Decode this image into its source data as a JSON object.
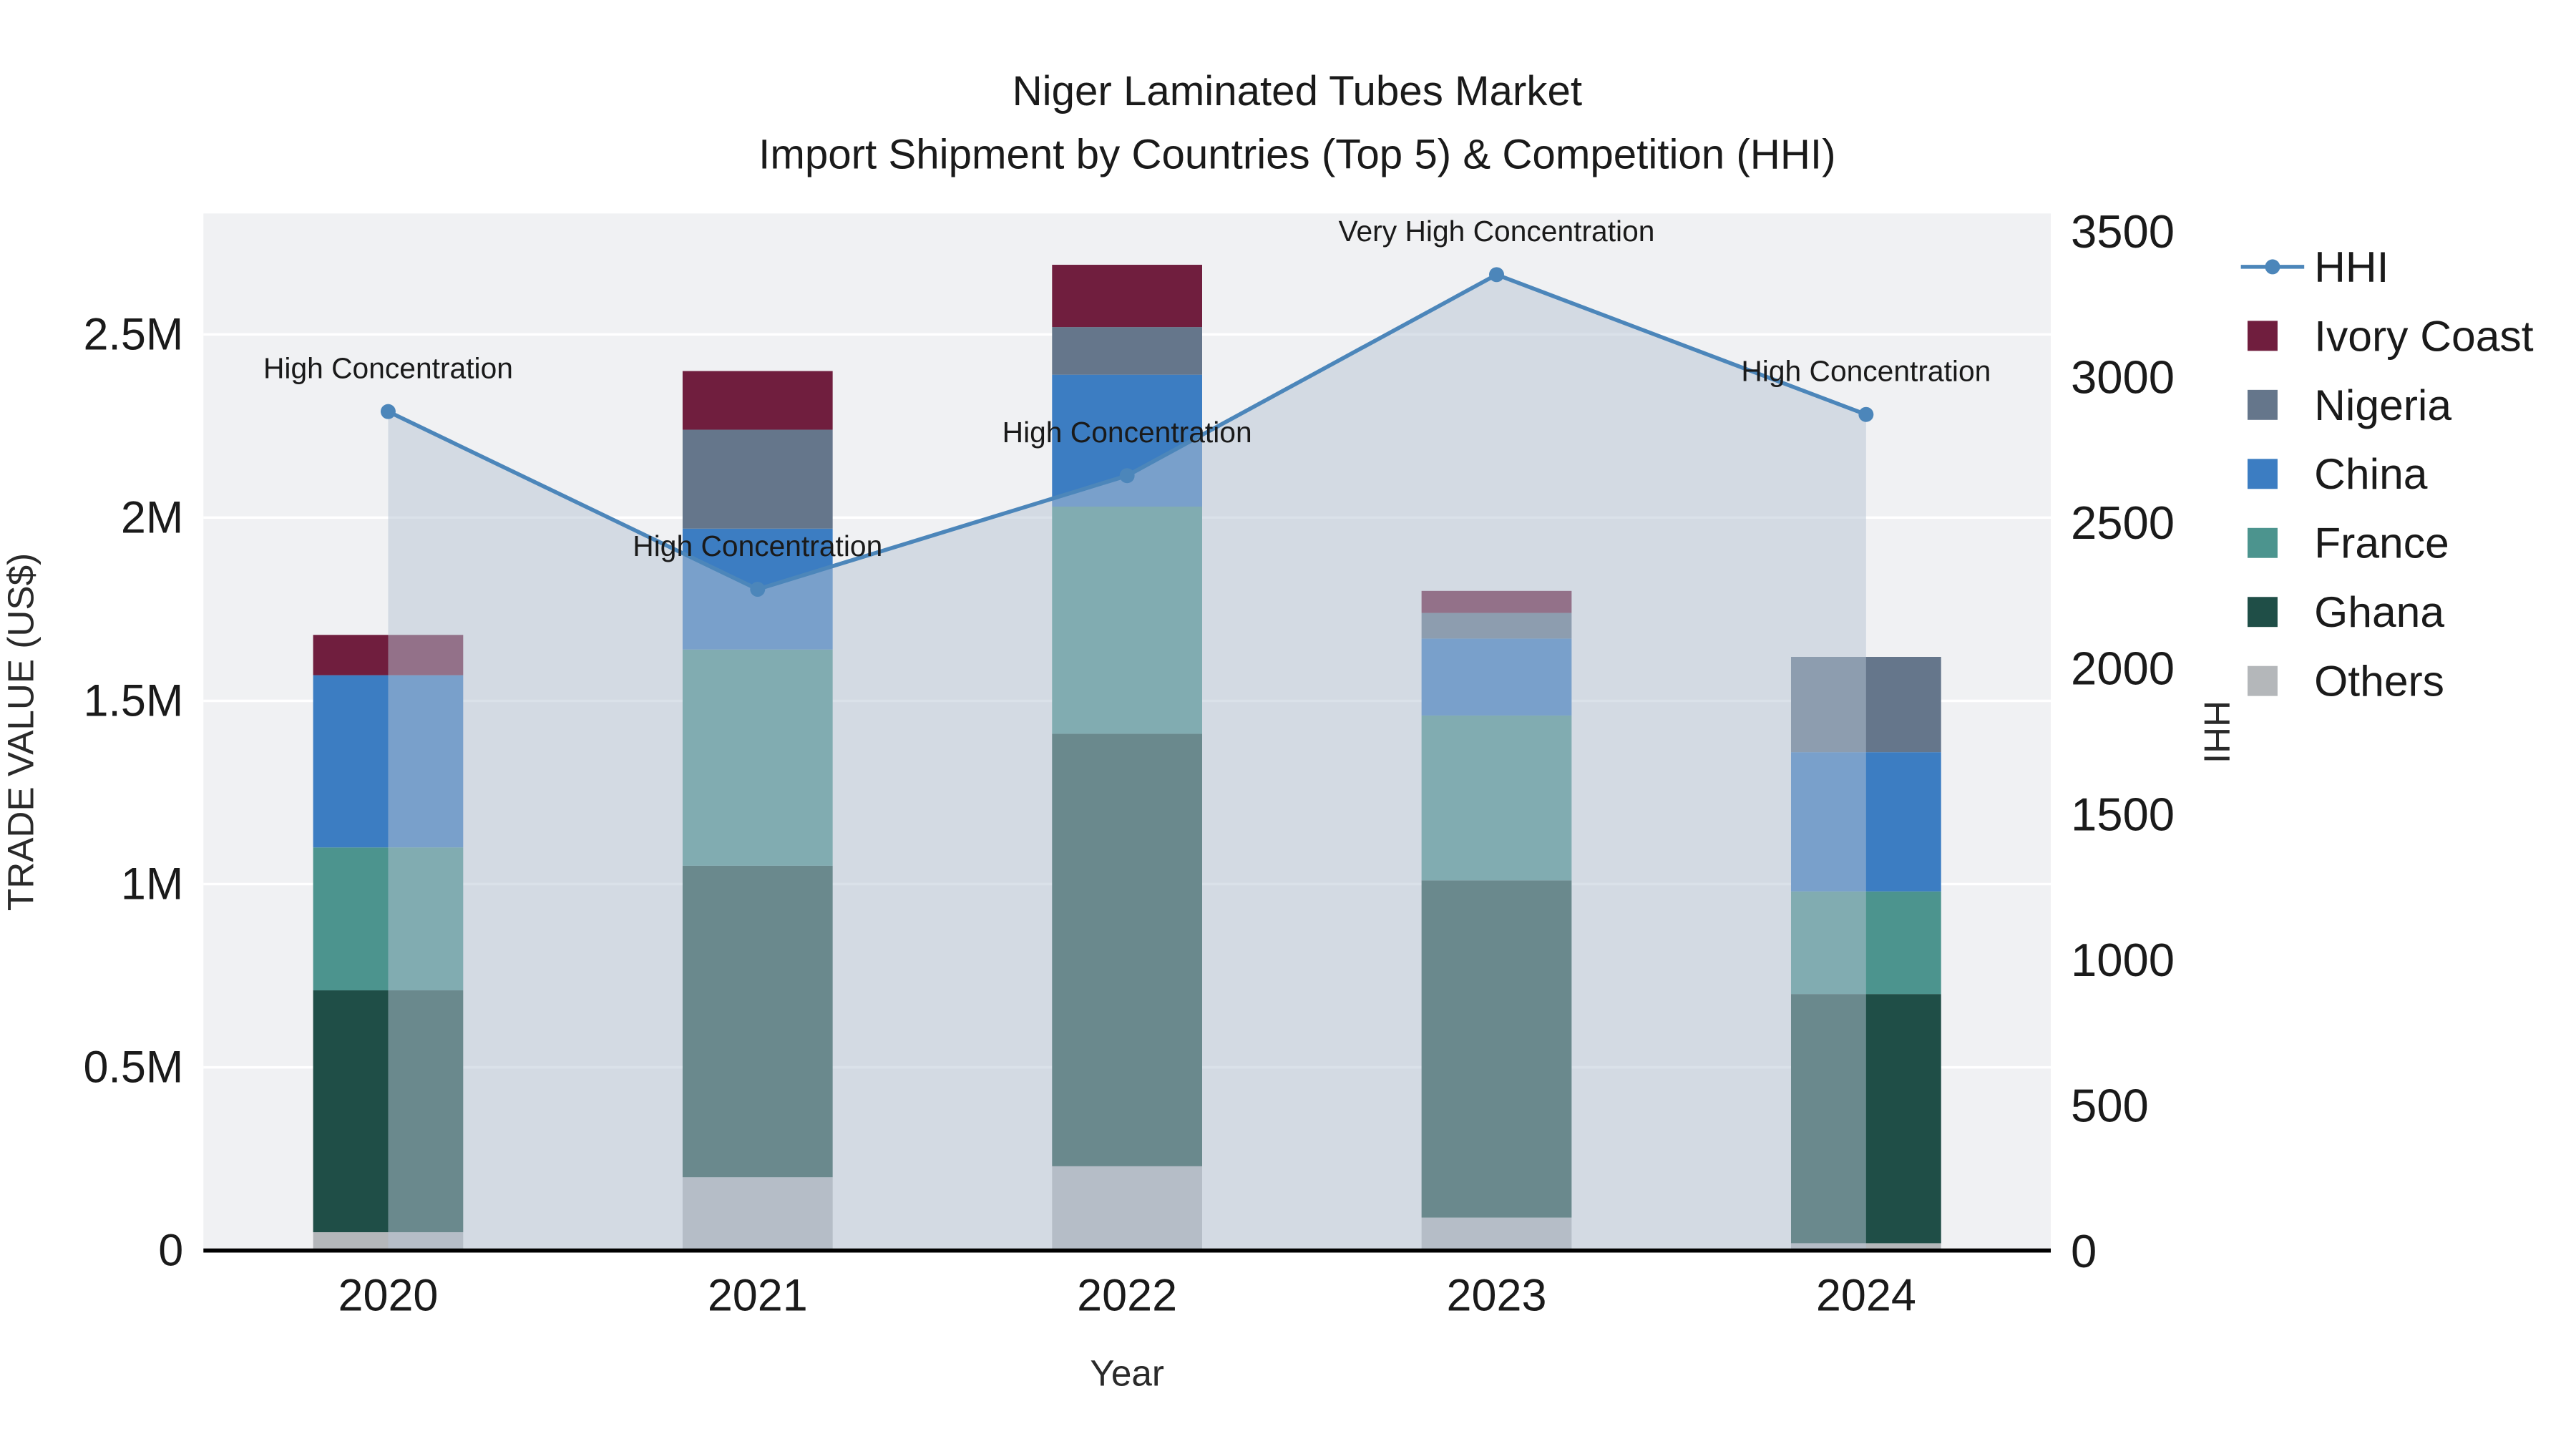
{
  "title": {
    "line1": "Niger Laminated Tubes Market",
    "line2": "Import Shipment by Countries (Top 5) & Competition (HHI)"
  },
  "chart_data": {
    "type": "stacked-bar+line",
    "x_label": "Year",
    "y_left_label": "TRADE VALUE (US$)",
    "y_right_label": "HHI",
    "categories": [
      "2020",
      "2021",
      "2022",
      "2023",
      "2024"
    ],
    "y_left_max": 2830000,
    "y_right_max": 3560,
    "y_left_ticks": [
      0,
      500000,
      1000000,
      1500000,
      2000000,
      2500000
    ],
    "y_left_tick_labels": [
      "0",
      "0.5M",
      "1M",
      "1.5M",
      "2M",
      "2.5M"
    ],
    "y_right_ticks": [
      0,
      500,
      1000,
      1500,
      2000,
      2500,
      3000,
      3500
    ],
    "bar_series": [
      {
        "name": "Others",
        "color": "#b4b7ba",
        "values": [
          50000,
          200000,
          230000,
          90000,
          20000
        ]
      },
      {
        "name": "Ghana",
        "color": "#1f4e47",
        "values": [
          660000,
          850000,
          1180000,
          920000,
          680000
        ]
      },
      {
        "name": "France",
        "color": "#4c948e",
        "values": [
          390000,
          590000,
          620000,
          450000,
          280000
        ]
      },
      {
        "name": "China",
        "color": "#3c7dc2",
        "values": [
          470000,
          330000,
          360000,
          210000,
          380000
        ]
      },
      {
        "name": "Nigeria",
        "color": "#65768b",
        "values": [
          0,
          270000,
          130000,
          70000,
          260000
        ]
      },
      {
        "name": "Ivory Coast",
        "color": "#701e3e",
        "values": [
          110000,
          160000,
          170000,
          60000,
          0
        ]
      }
    ],
    "line_series": {
      "name": "HHI",
      "color": "#4c86ba",
      "area_fill": "rgba(182,196,212,0.5)",
      "values": [
        2880,
        2270,
        2660,
        3350,
        2870
      ]
    },
    "annotations": [
      "High Concentration",
      "High Concentration",
      "High Concentration",
      "Very High Concentration",
      "High Concentration"
    ],
    "legend": [
      {
        "label": "HHI",
        "type": "line",
        "color": "#4c86ba"
      },
      {
        "label": "Ivory Coast",
        "type": "swatch",
        "color": "#701e3e"
      },
      {
        "label": "Nigeria",
        "type": "swatch",
        "color": "#65768b"
      },
      {
        "label": "China",
        "type": "swatch",
        "color": "#3c7dc2"
      },
      {
        "label": "France",
        "type": "swatch",
        "color": "#4c948e"
      },
      {
        "label": "Ghana",
        "type": "swatch",
        "color": "#1f4e47"
      },
      {
        "label": "Others",
        "type": "swatch",
        "color": "#b4b7ba"
      }
    ]
  }
}
